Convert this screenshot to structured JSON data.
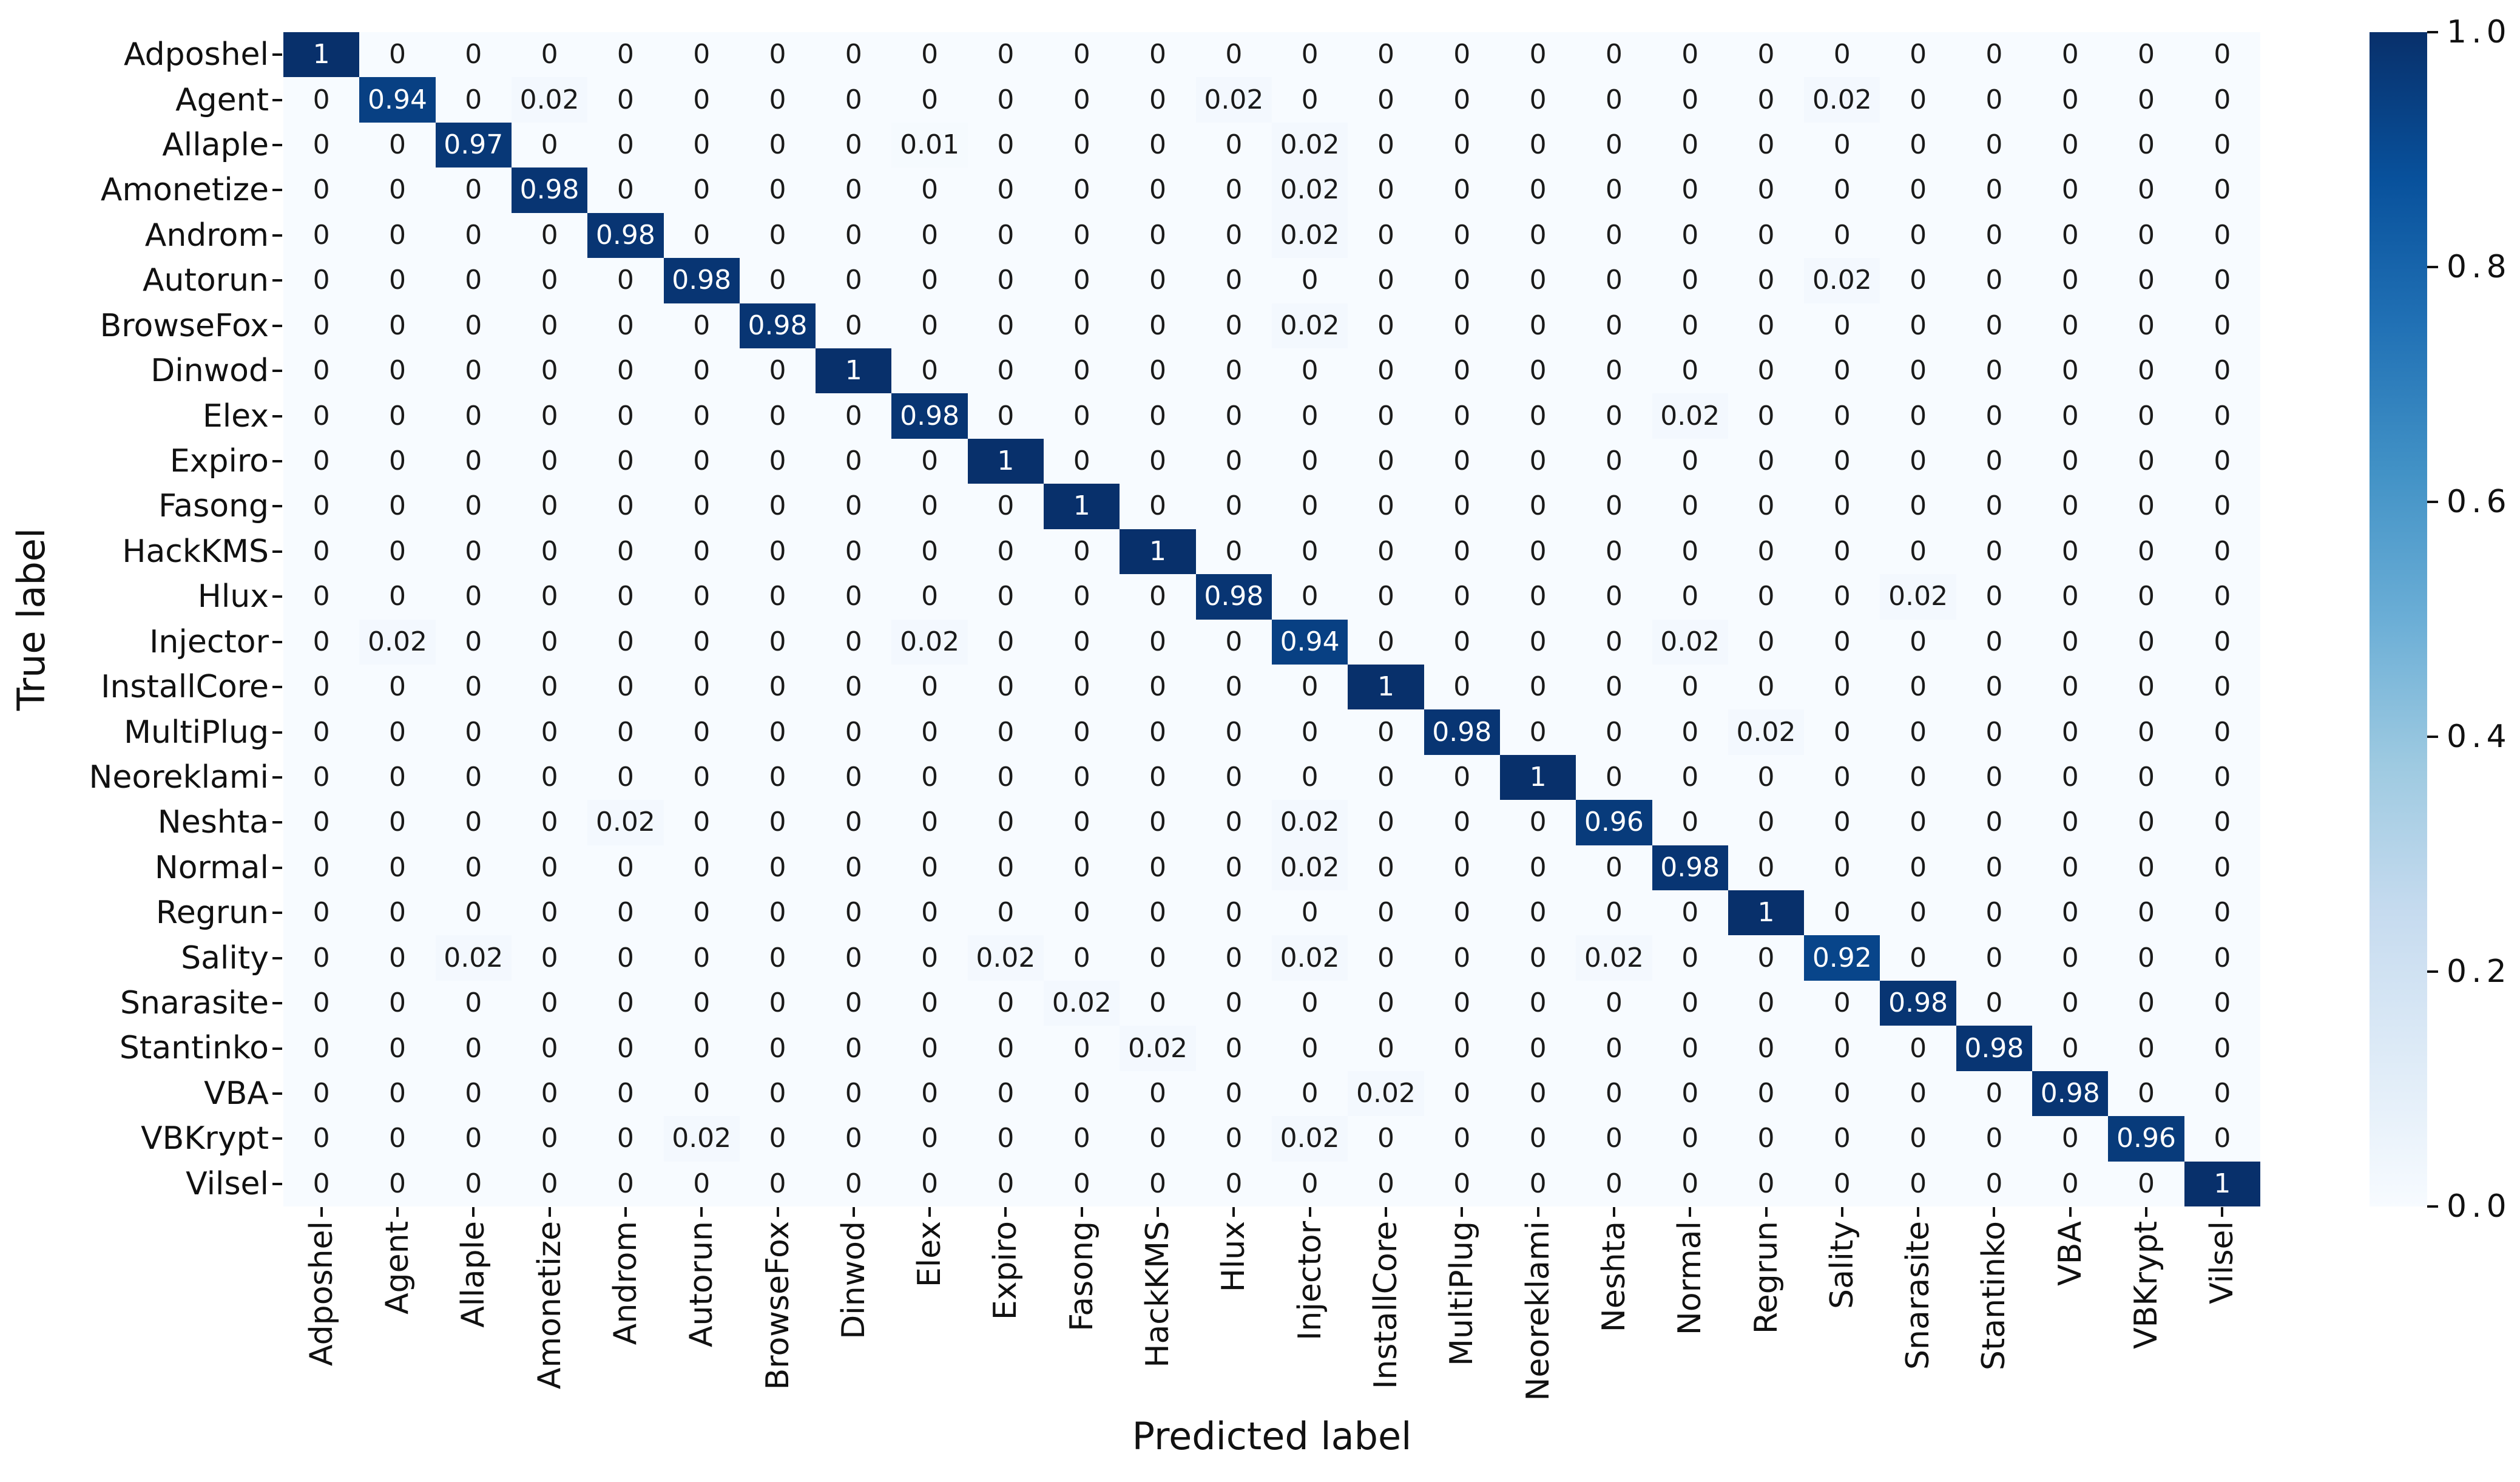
{
  "chart_data": {
    "type": "heatmap",
    "title": "",
    "xlabel": "Predicted label",
    "ylabel": "True label",
    "categories": [
      "Adposhel",
      "Agent",
      "Allaple",
      "Amonetize",
      "Androm",
      "Autorun",
      "BrowseFox",
      "Dinwod",
      "Elex",
      "Expiro",
      "Fasong",
      "HackKMS",
      "Hlux",
      "Injector",
      "InstallCore",
      "MultiPlug",
      "Neoreklami",
      "Neshta",
      "Normal",
      "Regrun",
      "Sality",
      "Snarasite",
      "Stantinko",
      "VBA",
      "VBKrypt",
      "Vilsel"
    ],
    "matrix": [
      [
        1,
        0,
        0,
        0,
        0,
        0,
        0,
        0,
        0,
        0,
        0,
        0,
        0,
        0,
        0,
        0,
        0,
        0,
        0,
        0,
        0,
        0,
        0,
        0,
        0,
        0
      ],
      [
        0,
        0.94,
        0,
        0.02,
        0,
        0,
        0,
        0,
        0,
        0,
        0,
        0,
        0.02,
        0,
        0,
        0,
        0,
        0,
        0,
        0,
        0.02,
        0,
        0,
        0,
        0,
        0
      ],
      [
        0,
        0,
        0.97,
        0,
        0,
        0,
        0,
        0,
        0.01,
        0,
        0,
        0,
        0,
        0.02,
        0,
        0,
        0,
        0,
        0,
        0,
        0,
        0,
        0,
        0,
        0,
        0
      ],
      [
        0,
        0,
        0,
        0.98,
        0,
        0,
        0,
        0,
        0,
        0,
        0,
        0,
        0,
        0.02,
        0,
        0,
        0,
        0,
        0,
        0,
        0,
        0,
        0,
        0,
        0,
        0
      ],
      [
        0,
        0,
        0,
        0,
        0.98,
        0,
        0,
        0,
        0,
        0,
        0,
        0,
        0,
        0.02,
        0,
        0,
        0,
        0,
        0,
        0,
        0,
        0,
        0,
        0,
        0,
        0
      ],
      [
        0,
        0,
        0,
        0,
        0,
        0.98,
        0,
        0,
        0,
        0,
        0,
        0,
        0,
        0,
        0,
        0,
        0,
        0,
        0,
        0,
        0.02,
        0,
        0,
        0,
        0,
        0
      ],
      [
        0,
        0,
        0,
        0,
        0,
        0,
        0.98,
        0,
        0,
        0,
        0,
        0,
        0,
        0.02,
        0,
        0,
        0,
        0,
        0,
        0,
        0,
        0,
        0,
        0,
        0,
        0
      ],
      [
        0,
        0,
        0,
        0,
        0,
        0,
        0,
        1,
        0,
        0,
        0,
        0,
        0,
        0,
        0,
        0,
        0,
        0,
        0,
        0,
        0,
        0,
        0,
        0,
        0,
        0
      ],
      [
        0,
        0,
        0,
        0,
        0,
        0,
        0,
        0,
        0.98,
        0,
        0,
        0,
        0,
        0,
        0,
        0,
        0,
        0,
        0.02,
        0,
        0,
        0,
        0,
        0,
        0,
        0
      ],
      [
        0,
        0,
        0,
        0,
        0,
        0,
        0,
        0,
        0,
        1,
        0,
        0,
        0,
        0,
        0,
        0,
        0,
        0,
        0,
        0,
        0,
        0,
        0,
        0,
        0,
        0
      ],
      [
        0,
        0,
        0,
        0,
        0,
        0,
        0,
        0,
        0,
        0,
        1,
        0,
        0,
        0,
        0,
        0,
        0,
        0,
        0,
        0,
        0,
        0,
        0,
        0,
        0,
        0
      ],
      [
        0,
        0,
        0,
        0,
        0,
        0,
        0,
        0,
        0,
        0,
        0,
        1,
        0,
        0,
        0,
        0,
        0,
        0,
        0,
        0,
        0,
        0,
        0,
        0,
        0,
        0
      ],
      [
        0,
        0,
        0,
        0,
        0,
        0,
        0,
        0,
        0,
        0,
        0,
        0,
        0.98,
        0,
        0,
        0,
        0,
        0,
        0,
        0,
        0,
        0.02,
        0,
        0,
        0,
        0
      ],
      [
        0,
        0.02,
        0,
        0,
        0,
        0,
        0,
        0,
        0.02,
        0,
        0,
        0,
        0,
        0.94,
        0,
        0,
        0,
        0,
        0.02,
        0,
        0,
        0,
        0,
        0,
        0,
        0
      ],
      [
        0,
        0,
        0,
        0,
        0,
        0,
        0,
        0,
        0,
        0,
        0,
        0,
        0,
        0,
        1,
        0,
        0,
        0,
        0,
        0,
        0,
        0,
        0,
        0,
        0,
        0
      ],
      [
        0,
        0,
        0,
        0,
        0,
        0,
        0,
        0,
        0,
        0,
        0,
        0,
        0,
        0,
        0,
        0.98,
        0,
        0,
        0,
        0.02,
        0,
        0,
        0,
        0,
        0,
        0
      ],
      [
        0,
        0,
        0,
        0,
        0,
        0,
        0,
        0,
        0,
        0,
        0,
        0,
        0,
        0,
        0,
        0,
        1,
        0,
        0,
        0,
        0,
        0,
        0,
        0,
        0,
        0
      ],
      [
        0,
        0,
        0,
        0,
        0.02,
        0,
        0,
        0,
        0,
        0,
        0,
        0,
        0,
        0.02,
        0,
        0,
        0,
        0.96,
        0,
        0,
        0,
        0,
        0,
        0,
        0,
        0
      ],
      [
        0,
        0,
        0,
        0,
        0,
        0,
        0,
        0,
        0,
        0,
        0,
        0,
        0,
        0.02,
        0,
        0,
        0,
        0,
        0.98,
        0,
        0,
        0,
        0,
        0,
        0,
        0
      ],
      [
        0,
        0,
        0,
        0,
        0,
        0,
        0,
        0,
        0,
        0,
        0,
        0,
        0,
        0,
        0,
        0,
        0,
        0,
        0,
        1,
        0,
        0,
        0,
        0,
        0,
        0
      ],
      [
        0,
        0,
        0.02,
        0,
        0,
        0,
        0,
        0,
        0,
        0.02,
        0,
        0,
        0,
        0.02,
        0,
        0,
        0,
        0.02,
        0,
        0,
        0.92,
        0,
        0,
        0,
        0,
        0
      ],
      [
        0,
        0,
        0,
        0,
        0,
        0,
        0,
        0,
        0,
        0,
        0.02,
        0,
        0,
        0,
        0,
        0,
        0,
        0,
        0,
        0,
        0,
        0.98,
        0,
        0,
        0,
        0
      ],
      [
        0,
        0,
        0,
        0,
        0,
        0,
        0,
        0,
        0,
        0,
        0,
        0.02,
        0,
        0,
        0,
        0,
        0,
        0,
        0,
        0,
        0,
        0,
        0.98,
        0,
        0,
        0
      ],
      [
        0,
        0,
        0,
        0,
        0,
        0,
        0,
        0,
        0,
        0,
        0,
        0,
        0,
        0,
        0.02,
        0,
        0,
        0,
        0,
        0,
        0,
        0,
        0,
        0.98,
        0,
        0
      ],
      [
        0,
        0,
        0,
        0,
        0,
        0.02,
        0,
        0,
        0,
        0,
        0,
        0,
        0,
        0.02,
        0,
        0,
        0,
        0,
        0,
        0,
        0,
        0,
        0,
        0,
        0.96,
        0
      ],
      [
        0,
        0,
        0,
        0,
        0,
        0,
        0,
        0,
        0,
        0,
        0,
        0,
        0,
        0,
        0,
        0,
        0,
        0,
        0,
        0,
        0,
        0,
        0,
        0,
        0,
        1
      ]
    ],
    "value_range": [
      0.0,
      1.0
    ],
    "grid": false,
    "legend_position": "right-colorbar",
    "colorbar": {
      "tick_labels": [
        "1.0",
        "0.8",
        "0.6",
        "0.4",
        "0.2",
        "0.0"
      ],
      "tick_values": [
        1.0,
        0.8,
        0.6,
        0.4,
        0.2,
        0.0
      ]
    },
    "colormap": {
      "name": "Blues",
      "stops": [
        "#f7fbff",
        "#deebf7",
        "#c6dbef",
        "#9ecae1",
        "#6baed6",
        "#4292c6",
        "#2171b5",
        "#08519c",
        "#08306b"
      ]
    },
    "annotation_text_dark": "#1a1a1a",
    "annotation_text_light": "#ffffff"
  }
}
